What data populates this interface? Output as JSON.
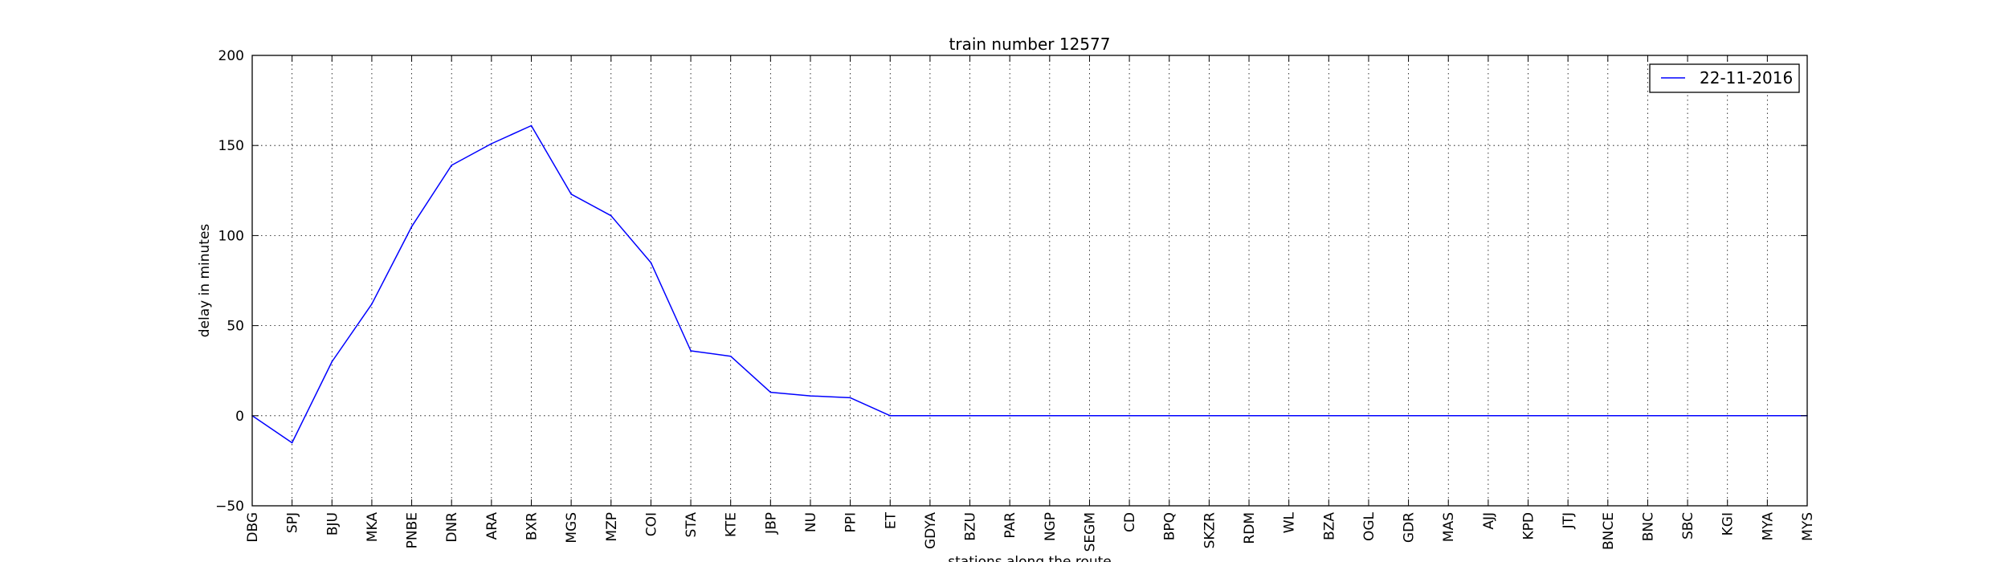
{
  "chart_data": {
    "type": "line",
    "title": "train number 12577",
    "xlabel": "stations along the route",
    "ylabel": "delay in minutes",
    "ylim": [
      -50,
      200
    ],
    "yticks": [
      -50,
      0,
      50,
      100,
      150,
      200
    ],
    "grid": true,
    "legend_position": "top-right",
    "categories": [
      "DBG",
      "SPJ",
      "BJU",
      "MKA",
      "PNBE",
      "DNR",
      "ARA",
      "BXR",
      "MGS",
      "MZP",
      "COI",
      "STA",
      "KTE",
      "JBP",
      "NU",
      "PPI",
      "ET",
      "GDYA",
      "BZU",
      "PAR",
      "NGP",
      "SEGM",
      "CD",
      "BPQ",
      "SKZR",
      "RDM",
      "WL",
      "BZA",
      "OGL",
      "GDR",
      "MAS",
      "AJJ",
      "KPD",
      "JTJ",
      "BNCE",
      "BNC",
      "SBC",
      "KGI",
      "MYA",
      "MYS"
    ],
    "series": [
      {
        "name": "22-11-2016",
        "color": "#0000ff",
        "values": [
          0,
          -15,
          30,
          62,
          105,
          139,
          151,
          161,
          123,
          111,
          85,
          36,
          33,
          13,
          11,
          10,
          0,
          0,
          0,
          0,
          0,
          0,
          0,
          0,
          0,
          0,
          0,
          0,
          0,
          0,
          0,
          0,
          0,
          0,
          0,
          0,
          0,
          0,
          0,
          0
        ]
      }
    ]
  }
}
